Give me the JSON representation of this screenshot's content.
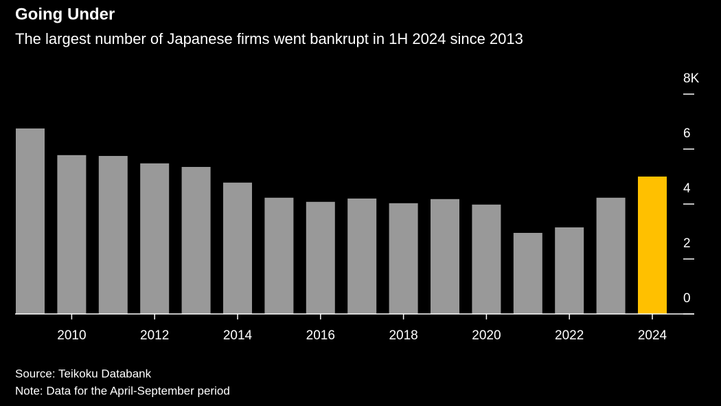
{
  "chart_data": {
    "type": "bar",
    "title": "Going Under",
    "subtitle": "The largest number of Japanese firms went bankrupt in 1H 2024 since 2013",
    "categories": [
      null,
      "2010",
      null,
      "2012",
      null,
      "2014",
      null,
      "2016",
      null,
      "2018",
      null,
      "2020",
      null,
      "2022",
      null,
      "2024"
    ],
    "values": [
      6.75,
      5.78,
      5.75,
      5.48,
      5.35,
      4.78,
      4.23,
      4.08,
      4.2,
      4.03,
      4.18,
      3.98,
      2.95,
      3.15,
      4.23,
      5.0
    ],
    "colors": [
      "#999999",
      "#999999",
      "#999999",
      "#999999",
      "#999999",
      "#999999",
      "#999999",
      "#999999",
      "#999999",
      "#999999",
      "#999999",
      "#999999",
      "#999999",
      "#999999",
      "#999999",
      "#ffc000"
    ],
    "ylim": [
      0,
      8
    ],
    "yticks": [
      0,
      2,
      4,
      6,
      {
        "value": 8,
        "label": "8K"
      }
    ],
    "source": "Source: Teikoku Databank",
    "note": "Note: Data for the April-September period"
  }
}
